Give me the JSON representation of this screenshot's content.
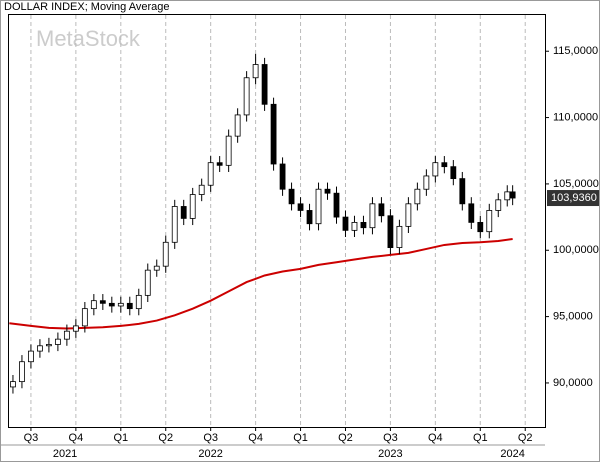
{
  "chart_data": {
    "type": "candlestick",
    "title": "DOLLAR INDEX; Moving Average",
    "watermark": "MetaStock",
    "color": "#000000",
    "x": [
      2021.4,
      2021.45,
      2021.5,
      2021.55,
      2021.6,
      2021.65,
      2021.7,
      2021.75,
      2021.8,
      2021.85,
      2021.9,
      2021.95,
      2022.0,
      2022.05,
      2022.1,
      2022.15,
      2022.2,
      2022.25,
      2022.3,
      2022.35,
      2022.4,
      2022.45,
      2022.5,
      2022.55,
      2022.6,
      2022.65,
      2022.7,
      2022.75,
      2022.8,
      2022.85,
      2022.9,
      2022.95,
      2023.0,
      2023.05,
      2023.1,
      2023.15,
      2023.2,
      2023.25,
      2023.3,
      2023.35,
      2023.4,
      2023.45,
      2023.5,
      2023.55,
      2023.6,
      2023.65,
      2023.7,
      2023.75,
      2023.8,
      2023.85,
      2023.9,
      2023.95,
      2024.0,
      2024.05,
      2024.1,
      2024.15,
      2024.18
    ],
    "open": [
      89.7,
      90.1,
      91.6,
      92.4,
      92.8,
      92.9,
      93.3,
      93.9,
      94.3,
      95.6,
      96.2,
      96.0,
      95.8,
      96.0,
      95.6,
      96.6,
      98.5,
      98.8,
      100.6,
      103.3,
      102.4,
      104.2,
      104.9,
      106.6,
      106.4,
      108.6,
      110.2,
      113.0,
      114.0,
      111.0,
      106.5,
      104.6,
      103.5,
      103.0,
      102.0,
      104.6,
      104.3,
      102.5,
      101.5,
      102.1,
      101.7,
      103.5,
      102.6,
      100.2,
      101.8,
      103.5,
      104.6,
      105.6,
      106.6,
      106.3,
      105.4,
      103.5,
      102.1,
      101.4,
      103.0,
      103.8,
      104.4
    ],
    "high": [
      90.6,
      92.1,
      92.9,
      93.3,
      93.4,
      93.8,
      94.4,
      94.8,
      96.1,
      96.7,
      96.7,
      96.5,
      96.5,
      96.5,
      97.1,
      99.0,
      99.3,
      101.1,
      103.8,
      103.8,
      104.7,
      105.4,
      107.1,
      107.1,
      109.1,
      110.7,
      113.5,
      114.8,
      114.5,
      111.5,
      107.0,
      105.1,
      104.0,
      103.5,
      105.1,
      105.1,
      104.8,
      103.0,
      102.6,
      102.6,
      104.0,
      104.0,
      103.1,
      102.3,
      104.0,
      105.1,
      106.1,
      107.1,
      107.1,
      106.8,
      105.9,
      104.0,
      102.6,
      103.5,
      104.3,
      104.9,
      104.9
    ],
    "low": [
      89.2,
      89.6,
      91.1,
      91.9,
      92.3,
      92.4,
      92.8,
      93.4,
      93.8,
      95.1,
      95.5,
      95.3,
      95.3,
      95.1,
      95.1,
      96.1,
      98.0,
      98.3,
      100.1,
      101.9,
      101.9,
      103.7,
      104.4,
      105.9,
      105.9,
      108.1,
      109.7,
      112.5,
      110.5,
      106.0,
      104.1,
      103.0,
      102.5,
      101.5,
      101.5,
      103.8,
      102.0,
      101.0,
      101.0,
      101.2,
      101.2,
      102.1,
      99.7,
      99.7,
      101.3,
      103.0,
      104.1,
      105.1,
      105.8,
      104.9,
      103.0,
      101.6,
      100.9,
      100.9,
      102.5,
      103.3,
      103.4
    ],
    "close": [
      90.1,
      91.6,
      92.4,
      92.8,
      92.9,
      93.3,
      93.9,
      94.3,
      95.6,
      96.2,
      96.0,
      95.8,
      96.0,
      95.6,
      96.6,
      98.5,
      98.8,
      100.6,
      103.3,
      102.4,
      104.2,
      104.9,
      106.6,
      106.4,
      108.6,
      110.2,
      113.0,
      114.0,
      111.0,
      106.5,
      104.6,
      103.5,
      103.0,
      102.0,
      104.6,
      104.3,
      102.5,
      101.5,
      102.1,
      101.7,
      103.5,
      102.6,
      100.2,
      101.8,
      103.5,
      104.6,
      105.6,
      106.6,
      106.3,
      105.4,
      103.5,
      102.1,
      101.4,
      103.0,
      103.8,
      104.4,
      103.936
    ],
    "moving_average": {
      "color": "#cc0000",
      "x": [
        2021.38,
        2021.5,
        2021.6,
        2021.7,
        2021.8,
        2021.9,
        2022.0,
        2022.1,
        2022.2,
        2022.3,
        2022.4,
        2022.5,
        2022.6,
        2022.7,
        2022.8,
        2022.9,
        2023.0,
        2023.1,
        2023.2,
        2023.3,
        2023.4,
        2023.5,
        2023.6,
        2023.7,
        2023.8,
        2023.9,
        2024.0,
        2024.1,
        2024.18
      ],
      "values": [
        94.5,
        94.3,
        94.15,
        94.1,
        94.15,
        94.2,
        94.3,
        94.45,
        94.7,
        95.1,
        95.6,
        96.2,
        96.9,
        97.6,
        98.1,
        98.4,
        98.6,
        98.9,
        99.1,
        99.3,
        99.5,
        99.65,
        99.8,
        100.1,
        100.4,
        100.55,
        100.6,
        100.7,
        100.85
      ]
    },
    "last_price": {
      "value": 103.936,
      "label": "103,9360"
    },
    "xlim": [
      2021.378,
      2024.36
    ],
    "ylim": [
      86.68,
      117.73
    ],
    "xticks": [
      {
        "value": 2021.5,
        "label": "Q3"
      },
      {
        "value": 2021.75,
        "label": "Q4"
      },
      {
        "value": 2022.0,
        "label": "Q1"
      },
      {
        "value": 2022.25,
        "label": "Q2"
      },
      {
        "value": 2022.5,
        "label": "Q3"
      },
      {
        "value": 2022.75,
        "label": "Q4"
      },
      {
        "value": 2023.0,
        "label": "Q1"
      },
      {
        "value": 2023.25,
        "label": "Q2"
      },
      {
        "value": 2023.5,
        "label": "Q3"
      },
      {
        "value": 2023.75,
        "label": "Q4"
      },
      {
        "value": 2024.0,
        "label": "Q1"
      },
      {
        "value": 2024.25,
        "label": "Q2"
      }
    ],
    "year_ticks": [
      {
        "value": 2021.69,
        "label": "2021"
      },
      {
        "value": 2022.5,
        "label": "2022"
      },
      {
        "value": 2023.5,
        "label": "2023"
      },
      {
        "value": 2024.18,
        "label": "2024"
      }
    ],
    "yticks": [
      {
        "value": 90,
        "label": "90,0000"
      },
      {
        "value": 95,
        "label": "95,0000"
      },
      {
        "value": 100,
        "label": "100,0000"
      },
      {
        "value": 105,
        "label": "105,0000"
      },
      {
        "value": 110,
        "label": "110,0000"
      },
      {
        "value": 115,
        "label": "115,0000"
      }
    ],
    "grid": true
  }
}
